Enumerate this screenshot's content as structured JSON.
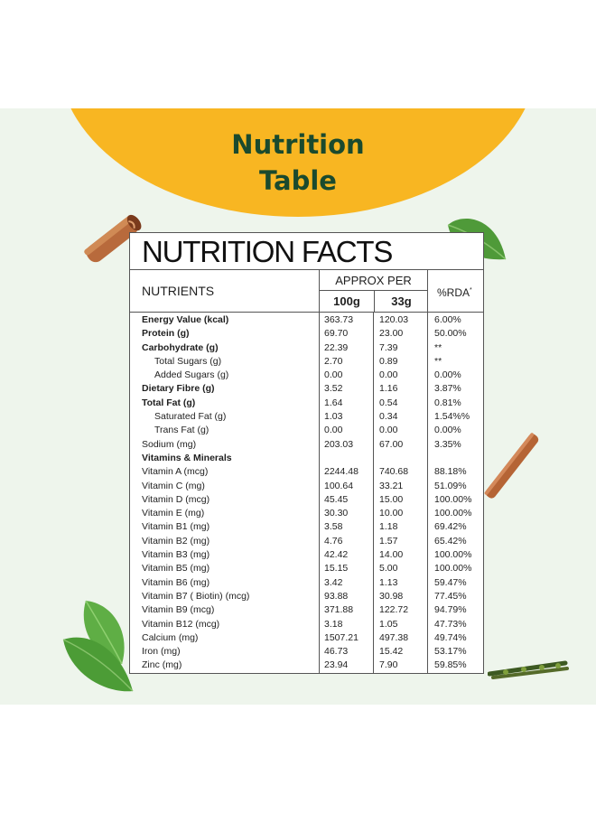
{
  "heading": {
    "line1": "Nutrition",
    "line2": "Table"
  },
  "facts": {
    "title": "NUTRITION FACTS",
    "col_nutrients": "NUTRIENTS",
    "col_approx": "APPROX PER",
    "col_100g": "100g",
    "col_33g": "33g",
    "col_rda": "%RDA",
    "col_rda_mark": "*",
    "rows": [
      {
        "name": "Energy Value (kcal)",
        "v100": "363.73",
        "v33": "120.03",
        "rda": "6.00%"
      },
      {
        "name": "Protein (g)",
        "v100": "69.70",
        "v33": "23.00",
        "rda": "50.00%"
      },
      {
        "name": "Carbohydrate (g)",
        "v100": "22.39",
        "v33": "7.39",
        "rda": "**"
      },
      {
        "name": "Total Sugars (g)",
        "v100": "2.70",
        "v33": "0.89",
        "rda": "**"
      },
      {
        "name": "Added Sugars (g)",
        "v100": "0.00",
        "v33": "0.00",
        "rda": "0.00%"
      },
      {
        "name": "Dietary Fibre (g)",
        "v100": "3.52",
        "v33": "1.16",
        "rda": "3.87%"
      },
      {
        "name": "Total Fat (g)",
        "v100": "1.64",
        "v33": "0.54",
        "rda": "0.81%"
      },
      {
        "name": "Saturated Fat (g)",
        "v100": "1.03",
        "v33": "0.34",
        "rda": "1.54%%"
      },
      {
        "name": "Trans Fat (g)",
        "v100": "0.00",
        "v33": "0.00",
        "rda": "0.00%"
      },
      {
        "name": "Sodium (mg)",
        "v100": "203.03",
        "v33": "67.00",
        "rda": "3.35%"
      },
      {
        "name": "Vitamins & Minerals",
        "v100": "",
        "v33": "",
        "rda": ""
      },
      {
        "name": "Vitamin A (mcg)",
        "v100": "2244.48",
        "v33": "740.68",
        "rda": "88.18%"
      },
      {
        "name": "Vitamin C (mg)",
        "v100": "100.64",
        "v33": "33.21",
        "rda": "51.09%"
      },
      {
        "name": "Vitamin D (mcg)",
        "v100": "45.45",
        "v33": "15.00",
        "rda": "100.00%"
      },
      {
        "name": "Vitamin E (mg)",
        "v100": "30.30",
        "v33": "10.00",
        "rda": "100.00%"
      },
      {
        "name": "Vitamin B1 (mg)",
        "v100": "3.58",
        "v33": "1.18",
        "rda": "69.42%"
      },
      {
        "name": "Vitamin B2 (mg)",
        "v100": "4.76",
        "v33": "1.57",
        "rda": "65.42%"
      },
      {
        "name": "Vitamin B3 (mg)",
        "v100": "42.42",
        "v33": "14.00",
        "rda": "100.00%"
      },
      {
        "name": "Vitamin B5 (mg)",
        "v100": "15.15",
        "v33": "5.00",
        "rda": "100.00%"
      },
      {
        "name": "Vitamin B6 (mg)",
        "v100": "3.42",
        "v33": "1.13",
        "rda": "59.47%"
      },
      {
        "name": "Vitamin B7 ( Biotin) (mcg)",
        "v100": "93.88",
        "v33": "30.98",
        "rda": "77.45%"
      },
      {
        "name": "Vitamin B9 (mcg)",
        "v100": "371.88",
        "v33": "122.72",
        "rda": "94.79%"
      },
      {
        "name": "Vitamin B12 (mcg)",
        "v100": "3.18",
        "v33": "1.05",
        "rda": "47.73%"
      },
      {
        "name": "Calcium (mg)",
        "v100": "1507.21",
        "v33": "497.38",
        "rda": "49.74%"
      },
      {
        "name": "Iron (mg)",
        "v100": "46.73",
        "v33": "15.42",
        "rda": "53.17%"
      },
      {
        "name": "Zinc (mg)",
        "v100": "23.94",
        "v33": "7.90",
        "rda": "59.85%"
      }
    ]
  },
  "colors": {
    "accent": "#f8b622",
    "heading": "#1a4a2e",
    "panel": "#eef5ec"
  },
  "decorations": [
    "cinnamon-stick",
    "tulsi-leaf",
    "moringa-twig"
  ]
}
